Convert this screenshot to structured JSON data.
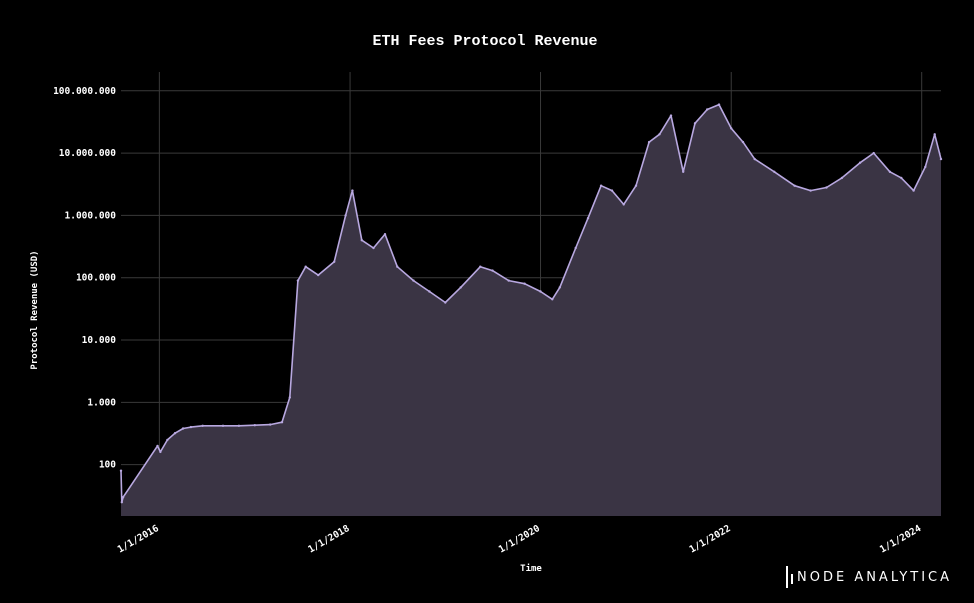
{
  "chart_data": {
    "type": "area",
    "title": "ETH Fees Protocol Revenue",
    "xlabel": "Time",
    "ylabel": "Protocol Revenue (USD)",
    "yscale": "log",
    "ylim": [
      15,
      200000000
    ],
    "xlim": [
      "2015-08-07",
      "2024-03-15"
    ],
    "y_ticks": [
      {
        "value": 100,
        "label": "100"
      },
      {
        "value": 1000,
        "label": "1.000"
      },
      {
        "value": 10000,
        "label": "10.000"
      },
      {
        "value": 100000,
        "label": "100.000"
      },
      {
        "value": 1000000,
        "label": "1.000.000"
      },
      {
        "value": 10000000,
        "label": "10.000.000"
      },
      {
        "value": 100000000,
        "label": "100.000.000"
      }
    ],
    "x_ticks": [
      {
        "value": "2016-01-01",
        "label": "1/1/2016"
      },
      {
        "value": "2018-01-01",
        "label": "1/1/2018"
      },
      {
        "value": "2020-01-01",
        "label": "1/1/2020"
      },
      {
        "value": "2022-01-01",
        "label": "1/1/2022"
      },
      {
        "value": "2024-01-01",
        "label": "1/1/2024"
      }
    ],
    "grid": true,
    "legend": "none",
    "colors": {
      "line": "#b8a8e0",
      "fill": "#3a3444",
      "grid": "#3a3a3a",
      "background": "#000000"
    },
    "series": [
      {
        "x": [
          "2015-08-07",
          "2015-08-10",
          "2015-08-15",
          "2015-12-25",
          "2016-01-05",
          "2016-02-01",
          "2016-03-01",
          "2016-04-01",
          "2016-05-01",
          "2016-06-15",
          "2016-09-01",
          "2016-11-01",
          "2017-01-01",
          "2017-03-01",
          "2017-04-15",
          "2017-05-15",
          "2017-06-15",
          "2017-07-15",
          "2017-09-01",
          "2017-11-01",
          "2017-12-15",
          "2018-01-10",
          "2018-02-15",
          "2018-04-01",
          "2018-05-15",
          "2018-07-01",
          "2018-09-01",
          "2018-11-01",
          "2019-01-01",
          "2019-03-01",
          "2019-05-15",
          "2019-07-01",
          "2019-09-01",
          "2019-11-01",
          "2020-01-01",
          "2020-02-15",
          "2020-03-15",
          "2020-05-15",
          "2020-07-01",
          "2020-08-20",
          "2020-10-01",
          "2020-11-15",
          "2021-01-01",
          "2021-02-20",
          "2021-04-01",
          "2021-05-15",
          "2021-07-01",
          "2021-08-15",
          "2021-10-01",
          "2021-11-15",
          "2022-01-01",
          "2022-02-15",
          "2022-04-01",
          "2022-06-15",
          "2022-09-01",
          "2022-11-01",
          "2023-01-01",
          "2023-03-01",
          "2023-05-10",
          "2023-07-01",
          "2023-09-01",
          "2023-10-15",
          "2023-12-01",
          "2024-01-15",
          "2024-02-20",
          "2024-03-15"
        ],
        "values": [
          80,
          25,
          30,
          200,
          160,
          250,
          320,
          380,
          400,
          420,
          420,
          420,
          430,
          440,
          480,
          1200,
          90000,
          150000,
          110000,
          180000,
          1000000,
          2500000,
          400000,
          300000,
          500000,
          150000,
          90000,
          60000,
          40000,
          70000,
          150000,
          130000,
          90000,
          80000,
          60000,
          45000,
          70000,
          300000,
          900000,
          3000000,
          2500000,
          1500000,
          3000000,
          15000000,
          20000000,
          40000000,
          5000000,
          30000000,
          50000000,
          60000000,
          25000000,
          15000000,
          8000000,
          5000000,
          3000000,
          2500000,
          2800000,
          4000000,
          7000000,
          10000000,
          5000000,
          4000000,
          2500000,
          6000000,
          20000000,
          8000000
        ]
      }
    ]
  },
  "brand": {
    "name": "NODE ANALYTICA"
  }
}
